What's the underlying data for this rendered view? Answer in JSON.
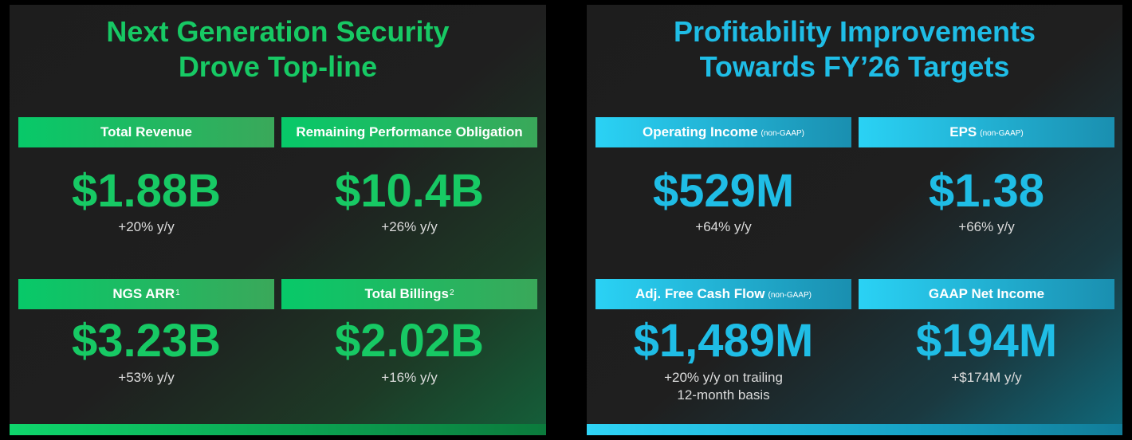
{
  "left_panel": {
    "title_line1": "Next Generation Security",
    "title_line2": "Drove Top-line",
    "cards": [
      {
        "label": "Total Revenue",
        "sup": "",
        "value": "$1.88B",
        "change": "+20% y/y"
      },
      {
        "label": "Remaining Performance Obligation",
        "sup": "",
        "value": "$10.4B",
        "change": "+26% y/y"
      },
      {
        "label": "NGS ARR",
        "sup": "1",
        "value": "$3.23B",
        "change": "+53% y/y"
      },
      {
        "label": "Total Billings",
        "sup": "2",
        "value": "$2.02B",
        "change": "+16% y/y"
      }
    ]
  },
  "right_panel": {
    "title_line1": "Profitability Improvements",
    "title_line2": "Towards FY’26 Targets",
    "cards": [
      {
        "label": "Operating Income",
        "note": "(non-GAAP)",
        "value": "$529M",
        "change": "+64% y/y"
      },
      {
        "label": "EPS",
        "note": "(non-GAAP)",
        "value": "$1.38",
        "change": "+66% y/y"
      },
      {
        "label": "Adj. Free Cash Flow",
        "note": "(non-GAAP)",
        "value": "$1,489M",
        "change_line1": "+20% y/y on trailing",
        "change_line2": "12-month basis"
      },
      {
        "label": "GAAP Net Income",
        "note": "",
        "value": "$194M",
        "change": "+$174M y/y"
      }
    ]
  },
  "colors": {
    "green_accent": "#17c964",
    "blue_accent": "#1fbde6",
    "panel_bg": "#1f1f1f",
    "page_bg": "#000000"
  }
}
